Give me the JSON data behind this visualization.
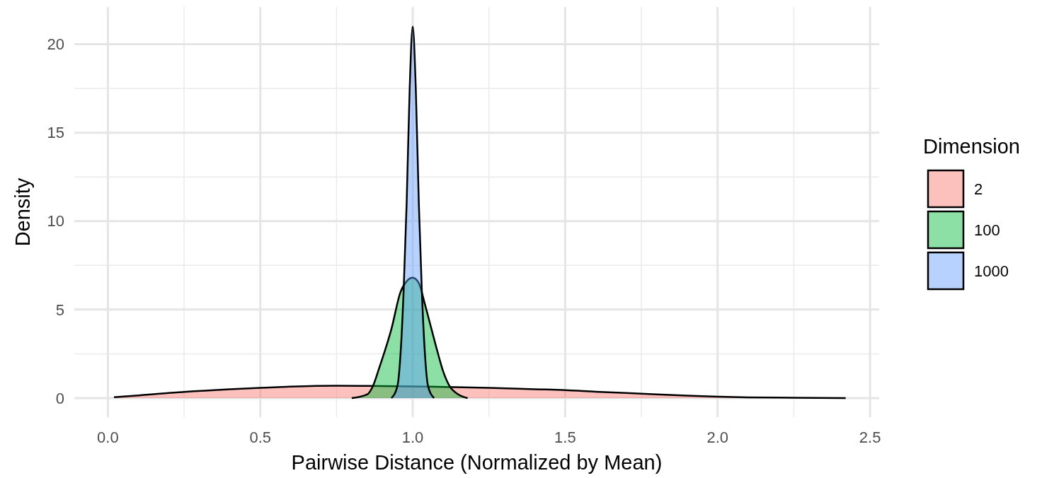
{
  "chart_data": {
    "type": "area",
    "xlabel": "Pairwise Distance (Normalized by Mean)",
    "ylabel": "Density",
    "legend_title": "Dimension",
    "legend": "right",
    "grid": true,
    "xlim": [
      -0.11,
      2.53
    ],
    "ylim": [
      -1.08,
      22.1
    ],
    "xticks": [
      {
        "value": 0,
        "label": "0.0"
      },
      {
        "value": 0.5,
        "label": "0.5"
      },
      {
        "value": 1,
        "label": "1.0"
      },
      {
        "value": 1.5,
        "label": "1.5"
      },
      {
        "value": 2,
        "label": "2.0"
      },
      {
        "value": 2.5,
        "label": "2.5"
      }
    ],
    "yticks": [
      0,
      5,
      10,
      15,
      20
    ],
    "series": [
      {
        "name": "2",
        "color": "#f8766d",
        "x": [
          0.02,
          0.1,
          0.25,
          0.4,
          0.5,
          0.6,
          0.75,
          0.9,
          1.0,
          1.1,
          1.25,
          1.4,
          1.5,
          1.6,
          1.75,
          1.9,
          2.0,
          2.1,
          2.25,
          2.42
        ],
        "values": [
          0.05,
          0.15,
          0.35,
          0.5,
          0.58,
          0.65,
          0.7,
          0.68,
          0.66,
          0.63,
          0.58,
          0.5,
          0.45,
          0.36,
          0.25,
          0.14,
          0.08,
          0.04,
          0.02,
          0
        ]
      },
      {
        "name": "100",
        "color": "#00ba38",
        "x": [
          0.8,
          0.85,
          0.87,
          0.89,
          0.93,
          0.96,
          0.98,
          1.0,
          1.02,
          1.04,
          1.06,
          1.08,
          1.1,
          1.12,
          1.15,
          1.18
        ],
        "values": [
          0,
          0.2,
          0.7,
          1.7,
          3.9,
          6.0,
          6.6,
          6.8,
          6.5,
          5.3,
          4.0,
          2.7,
          1.5,
          0.7,
          0.2,
          0
        ]
      },
      {
        "name": "1000",
        "color": "#619cff",
        "x": [
          0.93,
          0.95,
          0.96,
          0.97,
          0.98,
          0.99,
          1.0,
          1.01,
          1.02,
          1.03,
          1.04,
          1.05,
          1.07
        ],
        "values": [
          0,
          0.7,
          2.5,
          6,
          11,
          17.5,
          21,
          17.5,
          11,
          6,
          2.5,
          0.7,
          0
        ]
      }
    ]
  }
}
